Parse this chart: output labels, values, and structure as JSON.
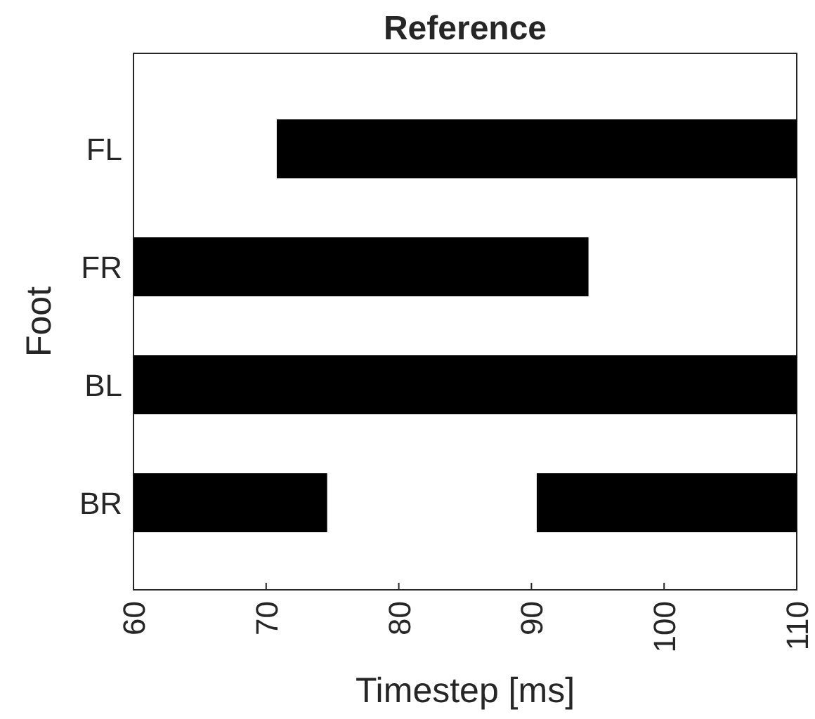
{
  "chart_data": {
    "type": "bar",
    "orientation": "horizontal",
    "title": "Reference",
    "xlabel": "Timestep [ms]",
    "ylabel": "Foot",
    "categories": [
      "FL",
      "FR",
      "BL",
      "BR"
    ],
    "series": [
      {
        "color": "#000000",
        "values": [
          39.2,
          34.3,
          50,
          14.6
        ],
        "base": [
          70.8,
          60,
          60,
          60
        ]
      },
      {
        "color": "#000000",
        "values": [
          null,
          null,
          null,
          19.6
        ],
        "base": [
          null,
          null,
          null,
          90.4
        ]
      }
    ],
    "xlim": [
      60,
      110
    ],
    "xticks": [
      60,
      70,
      80,
      90,
      100,
      110
    ],
    "grid": false
  }
}
